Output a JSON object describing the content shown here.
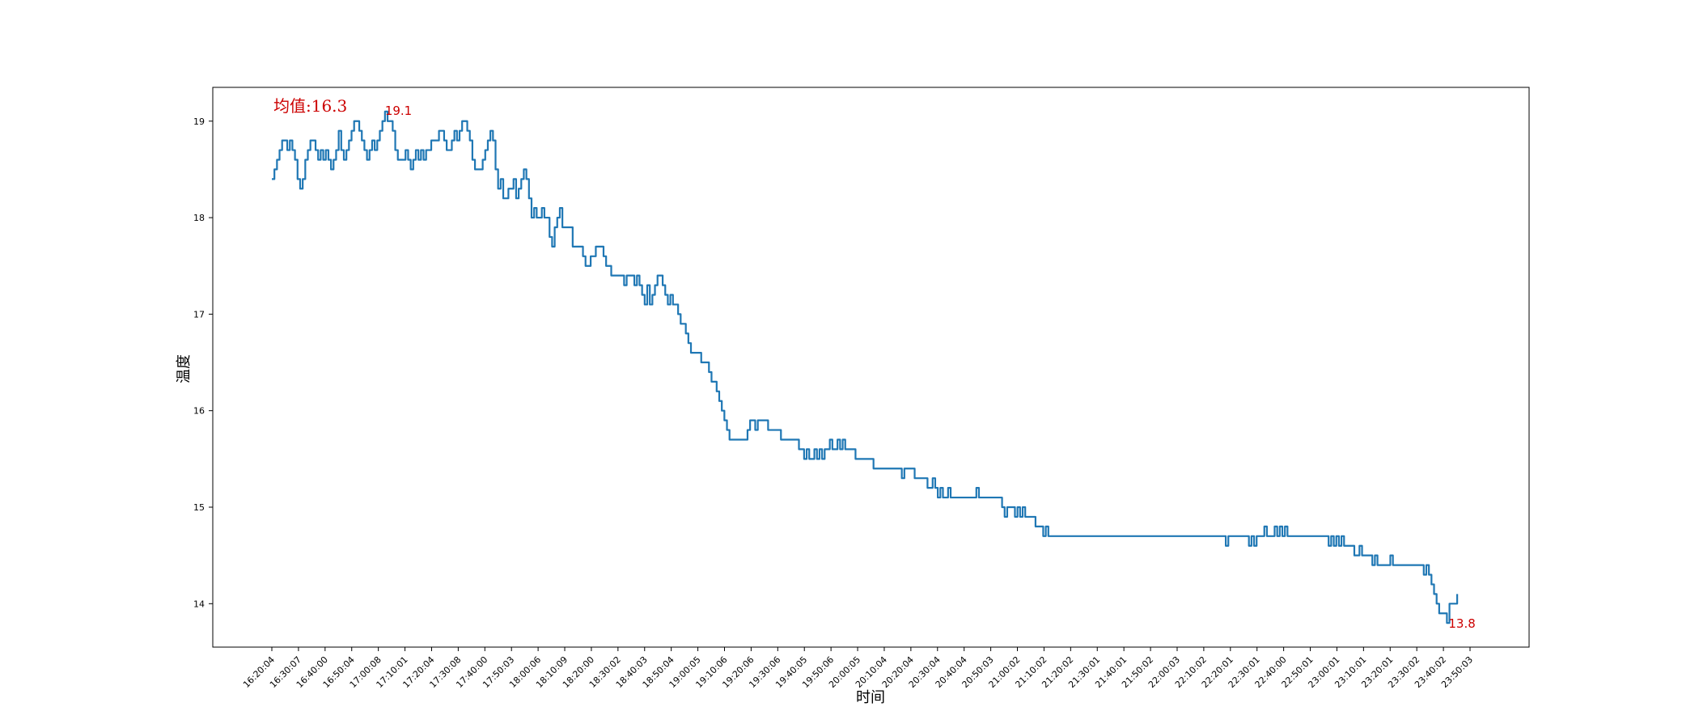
{
  "chart_data": {
    "type": "line",
    "xlabel": "时间",
    "ylabel": "温度",
    "ylim": [
      13.55,
      19.35
    ],
    "yticks": [
      14,
      15,
      16,
      17,
      18,
      19
    ],
    "xticks": [
      "16:20:04",
      "16:30:07",
      "16:40:00",
      "16:50:04",
      "17:00:08",
      "17:10:01",
      "17:20:04",
      "17:30:08",
      "17:40:00",
      "17:50:03",
      "18:00:06",
      "18:10:09",
      "18:20:00",
      "18:30:02",
      "18:40:03",
      "18:50:04",
      "19:00:05",
      "19:10:06",
      "19:20:06",
      "19:30:06",
      "19:40:05",
      "19:50:06",
      "20:00:05",
      "20:10:04",
      "20:20:04",
      "20:30:04",
      "20:40:04",
      "20:50:03",
      "21:00:02",
      "21:10:02",
      "21:20:02",
      "21:30:01",
      "21:40:01",
      "21:50:02",
      "22:00:03",
      "22:10:02",
      "22:20:01",
      "22:30:01",
      "22:40:00",
      "22:50:01",
      "23:00:01",
      "23:10:01",
      "23:20:01",
      "23:30:02",
      "23:40:02",
      "23:50:03"
    ],
    "xrange_minutes": [
      0,
      466
    ],
    "series": [
      {
        "color": "#1f77b4",
        "points": [
          [
            0,
            18.4
          ],
          [
            1,
            18.5
          ],
          [
            2,
            18.6
          ],
          [
            3,
            18.7
          ],
          [
            4,
            18.8
          ],
          [
            6,
            18.7
          ],
          [
            7,
            18.8
          ],
          [
            8,
            18.7
          ],
          [
            9,
            18.6
          ],
          [
            10,
            18.4
          ],
          [
            11,
            18.3
          ],
          [
            12,
            18.4
          ],
          [
            13,
            18.6
          ],
          [
            14,
            18.7
          ],
          [
            15,
            18.8
          ],
          [
            17,
            18.7
          ],
          [
            18,
            18.6
          ],
          [
            19,
            18.7
          ],
          [
            20,
            18.6
          ],
          [
            21,
            18.7
          ],
          [
            22,
            18.6
          ],
          [
            23,
            18.5
          ],
          [
            24,
            18.6
          ],
          [
            25,
            18.7
          ],
          [
            26,
            18.9
          ],
          [
            27,
            18.7
          ],
          [
            28,
            18.6
          ],
          [
            29,
            18.7
          ],
          [
            30,
            18.8
          ],
          [
            31,
            18.9
          ],
          [
            32,
            19.0
          ],
          [
            34,
            18.9
          ],
          [
            35,
            18.8
          ],
          [
            36,
            18.7
          ],
          [
            37,
            18.6
          ],
          [
            38,
            18.7
          ],
          [
            39,
            18.8
          ],
          [
            40,
            18.7
          ],
          [
            41,
            18.8
          ],
          [
            42,
            18.9
          ],
          [
            43,
            19.0
          ],
          [
            44,
            19.1
          ],
          [
            45,
            19.0
          ],
          [
            47,
            18.9
          ],
          [
            48,
            18.7
          ],
          [
            49,
            18.6
          ],
          [
            52,
            18.7
          ],
          [
            53,
            18.6
          ],
          [
            54,
            18.5
          ],
          [
            55,
            18.6
          ],
          [
            56,
            18.7
          ],
          [
            57,
            18.6
          ],
          [
            58,
            18.7
          ],
          [
            59,
            18.6
          ],
          [
            60,
            18.7
          ],
          [
            62,
            18.8
          ],
          [
            65,
            18.9
          ],
          [
            67,
            18.8
          ],
          [
            68,
            18.7
          ],
          [
            70,
            18.8
          ],
          [
            71,
            18.9
          ],
          [
            72,
            18.8
          ],
          [
            73,
            18.9
          ],
          [
            74,
            19.0
          ],
          [
            76,
            18.9
          ],
          [
            77,
            18.8
          ],
          [
            78,
            18.6
          ],
          [
            79,
            18.5
          ],
          [
            82,
            18.6
          ],
          [
            83,
            18.7
          ],
          [
            84,
            18.8
          ],
          [
            85,
            18.9
          ],
          [
            86,
            18.8
          ],
          [
            87,
            18.5
          ],
          [
            88,
            18.3
          ],
          [
            89,
            18.4
          ],
          [
            90,
            18.2
          ],
          [
            92,
            18.3
          ],
          [
            94,
            18.4
          ],
          [
            95,
            18.2
          ],
          [
            96,
            18.3
          ],
          [
            97,
            18.4
          ],
          [
            98,
            18.5
          ],
          [
            99,
            18.4
          ],
          [
            100,
            18.2
          ],
          [
            101,
            18.0
          ],
          [
            102,
            18.1
          ],
          [
            103,
            18.0
          ],
          [
            105,
            18.1
          ],
          [
            106,
            18.0
          ],
          [
            108,
            17.8
          ],
          [
            109,
            17.7
          ],
          [
            110,
            17.9
          ],
          [
            111,
            18.0
          ],
          [
            112,
            18.1
          ],
          [
            113,
            17.9
          ],
          [
            115,
            17.9
          ],
          [
            117,
            17.7
          ],
          [
            120,
            17.7
          ],
          [
            121,
            17.6
          ],
          [
            122,
            17.5
          ],
          [
            124,
            17.6
          ],
          [
            126,
            17.7
          ],
          [
            129,
            17.6
          ],
          [
            130,
            17.5
          ],
          [
            132,
            17.4
          ],
          [
            137,
            17.3
          ],
          [
            138,
            17.4
          ],
          [
            141,
            17.3
          ],
          [
            142,
            17.4
          ],
          [
            143,
            17.3
          ],
          [
            144,
            17.2
          ],
          [
            145,
            17.1
          ],
          [
            146,
            17.3
          ],
          [
            147,
            17.1
          ],
          [
            148,
            17.2
          ],
          [
            149,
            17.3
          ],
          [
            150,
            17.4
          ],
          [
            152,
            17.3
          ],
          [
            153,
            17.2
          ],
          [
            154,
            17.1
          ],
          [
            155,
            17.2
          ],
          [
            156,
            17.1
          ],
          [
            158,
            17.0
          ],
          [
            159,
            16.9
          ],
          [
            161,
            16.8
          ],
          [
            162,
            16.7
          ],
          [
            163,
            16.6
          ],
          [
            167,
            16.5
          ],
          [
            170,
            16.4
          ],
          [
            171,
            16.3
          ],
          [
            173,
            16.2
          ],
          [
            174,
            16.1
          ],
          [
            175,
            16.0
          ],
          [
            176,
            15.9
          ],
          [
            177,
            15.8
          ],
          [
            178,
            15.7
          ],
          [
            185,
            15.8
          ],
          [
            186,
            15.9
          ],
          [
            188,
            15.8
          ],
          [
            189,
            15.9
          ],
          [
            193,
            15.8
          ],
          [
            195,
            15.8
          ],
          [
            198,
            15.7
          ],
          [
            205,
            15.6
          ],
          [
            207,
            15.5
          ],
          [
            208,
            15.6
          ],
          [
            209,
            15.5
          ],
          [
            211,
            15.6
          ],
          [
            212,
            15.5
          ],
          [
            213,
            15.6
          ],
          [
            214,
            15.5
          ],
          [
            215,
            15.6
          ],
          [
            217,
            15.7
          ],
          [
            218,
            15.6
          ],
          [
            220,
            15.7
          ],
          [
            221,
            15.6
          ],
          [
            222,
            15.7
          ],
          [
            223,
            15.6
          ],
          [
            227,
            15.5
          ],
          [
            234,
            15.4
          ],
          [
            245,
            15.3
          ],
          [
            246,
            15.4
          ],
          [
            250,
            15.3
          ],
          [
            255,
            15.2
          ],
          [
            257,
            15.3
          ],
          [
            258,
            15.2
          ],
          [
            259,
            15.1
          ],
          [
            260,
            15.2
          ],
          [
            261,
            15.1
          ],
          [
            263,
            15.2
          ],
          [
            264,
            15.1
          ],
          [
            274,
            15.2
          ],
          [
            275,
            15.1
          ],
          [
            284,
            15.0
          ],
          [
            285,
            14.9
          ],
          [
            286,
            15.0
          ],
          [
            289,
            14.9
          ],
          [
            290,
            15.0
          ],
          [
            291,
            14.9
          ],
          [
            292,
            15.0
          ],
          [
            293,
            14.9
          ],
          [
            297,
            14.8
          ],
          [
            300,
            14.7
          ],
          [
            301,
            14.8
          ],
          [
            302,
            14.7
          ],
          [
            371,
            14.6
          ],
          [
            372,
            14.7
          ],
          [
            380,
            14.6
          ],
          [
            381,
            14.7
          ],
          [
            382,
            14.6
          ],
          [
            383,
            14.7
          ],
          [
            386,
            14.8
          ],
          [
            387,
            14.7
          ],
          [
            390,
            14.8
          ],
          [
            391,
            14.7
          ],
          [
            392,
            14.8
          ],
          [
            393,
            14.7
          ],
          [
            394,
            14.8
          ],
          [
            395,
            14.7
          ],
          [
            411,
            14.6
          ],
          [
            412,
            14.7
          ],
          [
            413,
            14.6
          ],
          [
            414,
            14.7
          ],
          [
            415,
            14.6
          ],
          [
            416,
            14.7
          ],
          [
            417,
            14.6
          ],
          [
            418,
            14.6
          ],
          [
            421,
            14.5
          ],
          [
            423,
            14.6
          ],
          [
            424,
            14.5
          ],
          [
            428,
            14.4
          ],
          [
            429,
            14.5
          ],
          [
            430,
            14.4
          ],
          [
            432,
            14.4
          ],
          [
            435,
            14.5
          ],
          [
            436,
            14.4
          ],
          [
            448,
            14.3
          ],
          [
            449,
            14.4
          ],
          [
            450,
            14.3
          ],
          [
            451,
            14.2
          ],
          [
            452,
            14.1
          ],
          [
            453,
            14.0
          ],
          [
            454,
            13.9
          ],
          [
            457,
            13.8
          ],
          [
            458,
            14.0
          ],
          [
            460,
            14.0
          ],
          [
            461,
            14.1
          ]
        ]
      }
    ],
    "annotations": {
      "max_label": "19.1",
      "max_point": [
        44,
        19.1
      ],
      "min_label": "13.8",
      "min_point": [
        457,
        13.8
      ],
      "mean_label": "均值:16.3",
      "color": "#cc0000"
    }
  }
}
